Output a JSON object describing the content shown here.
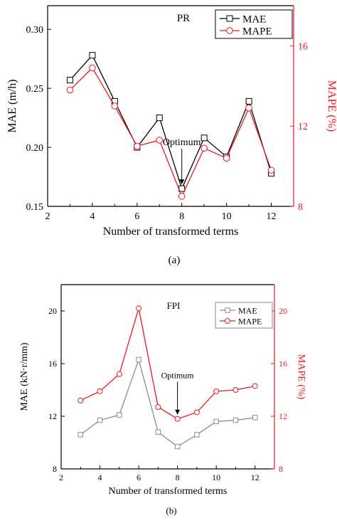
{
  "chart_data": [
    {
      "type": "line",
      "title": "PR",
      "xlabel": "Number of transformed terms",
      "ylabel": "MAE (m/h)",
      "y2label": "MAPE (%)",
      "caption": "(a)",
      "x": [
        3,
        4,
        5,
        6,
        7,
        8,
        9,
        10,
        11,
        12
      ],
      "xlim": [
        2,
        13
      ],
      "xticks": [
        2,
        4,
        6,
        8,
        10,
        12
      ],
      "ylim": [
        0.15,
        0.32
      ],
      "yticks": [
        0.15,
        0.2,
        0.25,
        0.3
      ],
      "ytick_labels": [
        "0.15",
        "0.20",
        "0.25",
        "0.30"
      ],
      "y2lim": [
        8,
        18
      ],
      "y2ticks": [
        8,
        12,
        16
      ],
      "series": [
        {
          "name": "MAE",
          "axis": "left",
          "color": "#000000",
          "marker": "square",
          "values": [
            0.257,
            0.278,
            0.239,
            0.2,
            0.225,
            0.165,
            0.208,
            0.192,
            0.239,
            0.178
          ]
        },
        {
          "name": "MAPE",
          "axis": "right",
          "color": "#e8191d",
          "marker": "circle",
          "values": [
            13.8,
            14.9,
            13.0,
            11.0,
            11.3,
            8.5,
            10.9,
            10.4,
            12.9,
            9.8
          ]
        }
      ],
      "annotation": {
        "text": "Optimum",
        "x": 8
      },
      "legend": "top-right",
      "right_axis_color": "#e8191d"
    },
    {
      "type": "line",
      "title": "FPI",
      "xlabel": "Number of transformed terms",
      "ylabel": "MAE (kN·r/mm)",
      "y2label": "MAPE (%)",
      "caption": "(b)",
      "x": [
        3,
        4,
        5,
        6,
        7,
        8,
        9,
        10,
        11,
        12
      ],
      "xlim": [
        2,
        13
      ],
      "xticks": [
        2,
        4,
        6,
        8,
        10,
        12
      ],
      "ylim": [
        8,
        22
      ],
      "yticks": [
        8,
        12,
        16,
        20
      ],
      "ytick_labels": [
        "8",
        "12",
        "16",
        "20"
      ],
      "y2lim": [
        8,
        22
      ],
      "y2ticks": [
        8,
        12,
        16,
        20
      ],
      "series": [
        {
          "name": "MAE",
          "axis": "left",
          "color": "#8c8c8c",
          "marker": "square",
          "values": [
            10.6,
            11.7,
            12.1,
            16.3,
            10.8,
            9.7,
            10.6,
            11.6,
            11.7,
            11.9
          ]
        },
        {
          "name": "MAPE",
          "axis": "right",
          "color": "#e8191d",
          "marker": "circle",
          "values": [
            13.2,
            13.9,
            15.2,
            20.2,
            12.7,
            11.8,
            12.3,
            13.9,
            14.0,
            14.3
          ]
        }
      ],
      "annotation": {
        "text": "Optimum",
        "x": 8
      },
      "legend": "top-right",
      "right_axis_color": "#e8191d"
    }
  ]
}
